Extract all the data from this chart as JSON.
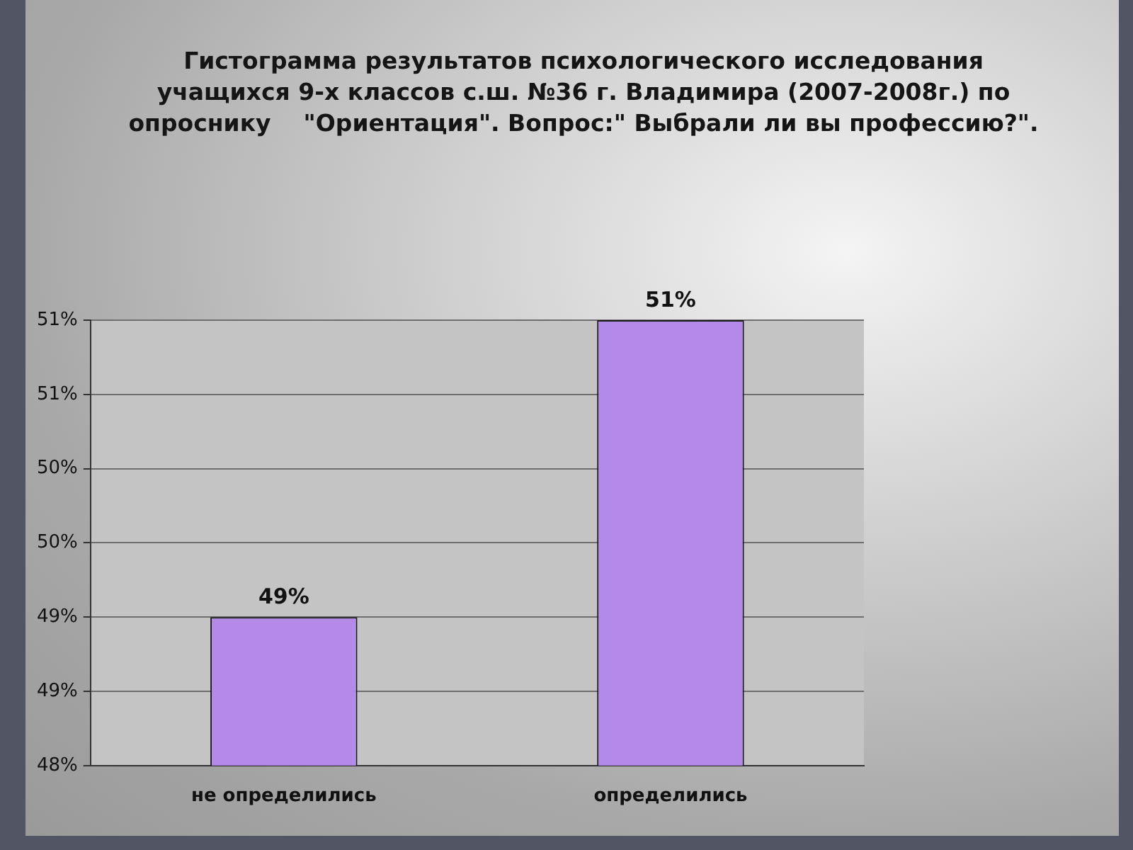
{
  "chart_data": {
    "type": "bar",
    "title": "Гистограмма результатов психологического исследования\nучащихся 9-х классов с.ш. №36 г. Владимира (2007-2008г.) по\nопроснику    \"Ориентация\". Вопрос:\" Выбрали ли вы профессию?\".",
    "categories": [
      "не определились",
      "определились"
    ],
    "values": [
      49,
      51
    ],
    "color": "#b48ae8",
    "value_labels": [
      "49%",
      "51%"
    ],
    "ylim": [
      48,
      51
    ],
    "yticks": [
      {
        "value": 48,
        "label": "48%"
      },
      {
        "value": 48.5,
        "label": "49%"
      },
      {
        "value": 49,
        "label": "49%"
      },
      {
        "value": 49.5,
        "label": "50%"
      },
      {
        "value": 50,
        "label": "50%"
      },
      {
        "value": 50.5,
        "label": "51%"
      },
      {
        "value": 51,
        "label": "51%"
      }
    ],
    "grid": "y"
  }
}
